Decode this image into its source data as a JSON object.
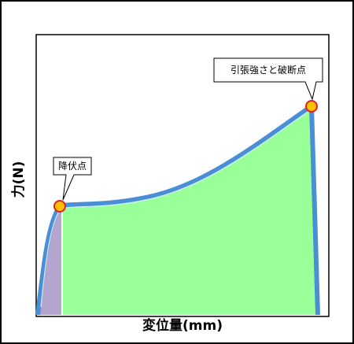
{
  "axes": {
    "x_label": "変位量(mm)",
    "y_label": "力(N)"
  },
  "annotations": [
    {
      "label": "降伏点"
    },
    {
      "label": "引張強さと破断点"
    }
  ]
}
